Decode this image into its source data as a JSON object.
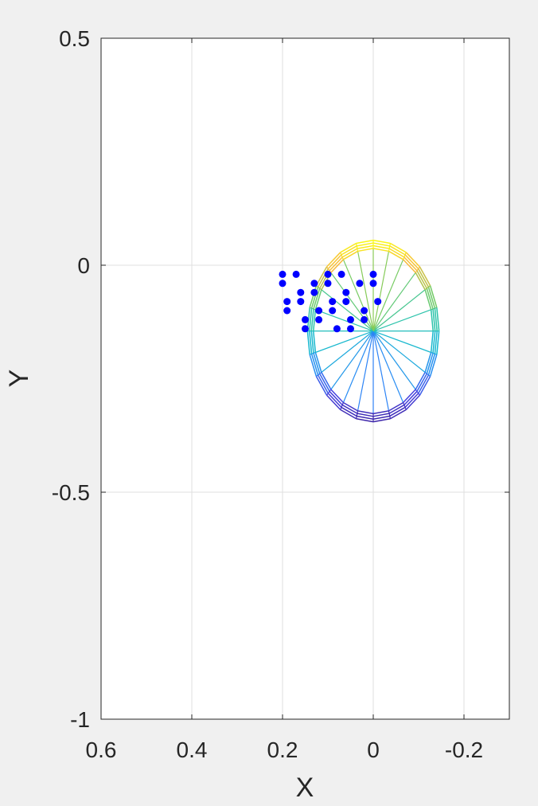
{
  "chart_data": {
    "type": "scatter",
    "xlabel": "X",
    "ylabel": "Y",
    "xlim": [
      -0.3,
      0.6
    ],
    "ylim": [
      -1,
      0.5
    ],
    "x_direction": "reversed",
    "xticks": [
      0.6,
      0.4,
      0.2,
      0,
      -0.2
    ],
    "xtick_labels": [
      "0.6",
      "0.4",
      "0.2",
      "0",
      "-0.2"
    ],
    "yticks": [
      0.5,
      0,
      -0.5,
      -1
    ],
    "ytick_labels": [
      "0.5",
      "0",
      "-0.5",
      "-1"
    ],
    "grid": true,
    "mesh": {
      "kind": "ellipsoid wireframe (parula colormap by Y)",
      "center": [
        0,
        -0.145
      ],
      "radius_x": 0.145,
      "radius_y": 0.2,
      "ring_scales": [
        1.0,
        0.97,
        0.94,
        0.91
      ],
      "spokes": 24,
      "colors": [
        "#3e26a8",
        "#4743e0",
        "#2c87f7",
        "#16b7d2",
        "#2ec4a7",
        "#81cc59",
        "#f8ba3d",
        "#f9fb15"
      ]
    },
    "points": {
      "color": "#0000ff",
      "x": [
        0.2,
        0.17,
        0.2,
        0.1,
        0.07,
        0.0,
        0.13,
        0.1,
        0.03,
        0.0,
        0.16,
        0.13,
        0.06,
        0.19,
        0.16,
        0.09,
        0.06,
        -0.01,
        0.19,
        0.12,
        0.09,
        0.02,
        0.15,
        0.12,
        0.05,
        0.02,
        0.15,
        0.08,
        0.05
      ],
      "y": [
        -0.02,
        -0.02,
        -0.04,
        -0.02,
        -0.02,
        -0.02,
        -0.04,
        -0.04,
        -0.04,
        -0.04,
        -0.06,
        -0.06,
        -0.06,
        -0.08,
        -0.08,
        -0.08,
        -0.08,
        -0.08,
        -0.1,
        -0.1,
        -0.1,
        -0.1,
        -0.12,
        -0.12,
        -0.12,
        -0.12,
        -0.14,
        -0.14,
        -0.14
      ]
    }
  }
}
